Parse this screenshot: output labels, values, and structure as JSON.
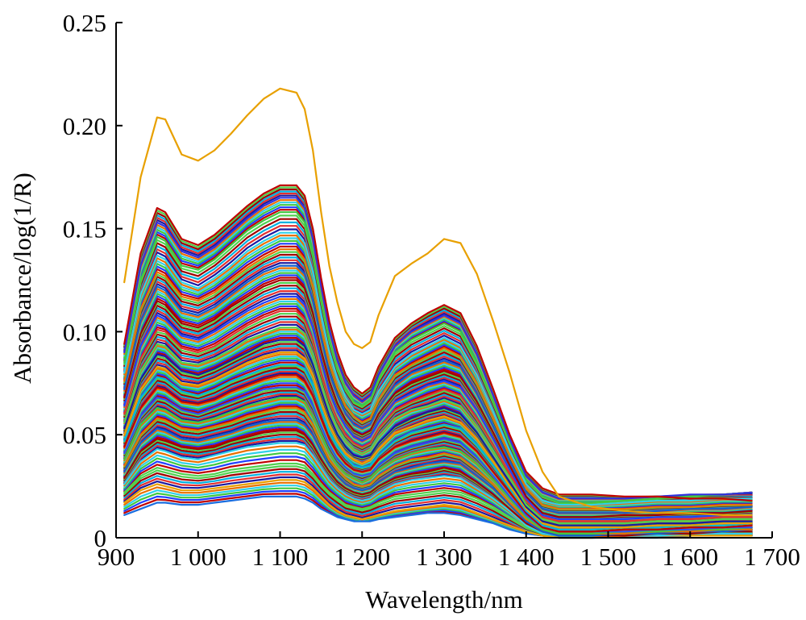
{
  "chart_data": {
    "type": "line",
    "title": "",
    "xlabel": "Wavelength/nm",
    "ylabel": "Absorbance/log(1/R)",
    "xlim": [
      900,
      1700
    ],
    "ylim": [
      0,
      0.25
    ],
    "x_ticks": [
      900,
      1000,
      1100,
      1200,
      1300,
      1400,
      1500,
      1600,
      1700
    ],
    "x_tick_labels": [
      "900",
      "1 000",
      "1 100",
      "1 200",
      "1 300",
      "1 400",
      "1 500",
      "1 600",
      "1 700"
    ],
    "y_ticks": [
      0,
      0.05,
      0.1,
      0.15,
      0.2,
      0.25
    ],
    "y_tick_labels": [
      "0",
      "0.05",
      "0.10",
      "0.15",
      "0.20",
      "0.25"
    ],
    "grid": false,
    "legend": "none",
    "x": [
      910,
      930,
      950,
      960,
      980,
      1000,
      1020,
      1040,
      1060,
      1080,
      1100,
      1120,
      1130,
      1140,
      1150,
      1160,
      1170,
      1180,
      1190,
      1200,
      1210,
      1220,
      1240,
      1260,
      1280,
      1300,
      1320,
      1340,
      1360,
      1380,
      1400,
      1420,
      1440,
      1480,
      1520,
      1560,
      1600,
      1640,
      1675
    ],
    "series": [
      {
        "color": "#e8a000",
        "values": [
          0.124,
          0.175,
          0.204,
          0.203,
          0.186,
          0.183,
          0.188,
          0.196,
          0.205,
          0.213,
          0.218,
          0.216,
          0.208,
          0.188,
          0.158,
          0.132,
          0.114,
          0.1,
          0.094,
          0.092,
          0.095,
          0.108,
          0.127,
          0.133,
          0.138,
          0.145,
          0.143,
          0.128,
          0.105,
          0.08,
          0.052,
          0.032,
          0.02,
          0.015,
          0.013,
          0.012,
          0.012,
          0.011,
          0.011
        ]
      },
      {
        "color": "#c00000",
        "values": [
          0.094,
          0.138,
          0.16,
          0.158,
          0.145,
          0.142,
          0.147,
          0.154,
          0.161,
          0.167,
          0.171,
          0.171,
          0.166,
          0.15,
          0.126,
          0.105,
          0.09,
          0.079,
          0.073,
          0.07,
          0.073,
          0.083,
          0.097,
          0.104,
          0.109,
          0.113,
          0.109,
          0.093,
          0.072,
          0.05,
          0.032,
          0.024,
          0.021,
          0.021,
          0.02,
          0.02,
          0.019,
          0.019,
          0.018
        ]
      },
      {
        "color": "#3030e0",
        "values": [
          0.09,
          0.132,
          0.153,
          0.151,
          0.139,
          0.136,
          0.141,
          0.148,
          0.155,
          0.161,
          0.165,
          0.165,
          0.16,
          0.145,
          0.122,
          0.101,
          0.086,
          0.075,
          0.069,
          0.066,
          0.069,
          0.079,
          0.093,
          0.1,
          0.104,
          0.108,
          0.104,
          0.089,
          0.069,
          0.048,
          0.03,
          0.022,
          0.019,
          0.019,
          0.019,
          0.02,
          0.021,
          0.021,
          0.022
        ]
      },
      {
        "color": "#40c840",
        "values": [
          0.085,
          0.125,
          0.146,
          0.144,
          0.132,
          0.13,
          0.135,
          0.142,
          0.149,
          0.154,
          0.158,
          0.158,
          0.153,
          0.138,
          0.116,
          0.096,
          0.082,
          0.072,
          0.066,
          0.064,
          0.067,
          0.077,
          0.09,
          0.096,
          0.1,
          0.104,
          0.1,
          0.085,
          0.066,
          0.046,
          0.028,
          0.02,
          0.017,
          0.017,
          0.018,
          0.019,
          0.02,
          0.021,
          0.022
        ]
      },
      {
        "color": "#30d0e8",
        "values": [
          0.08,
          0.118,
          0.137,
          0.135,
          0.124,
          0.121,
          0.126,
          0.132,
          0.139,
          0.144,
          0.148,
          0.148,
          0.143,
          0.129,
          0.108,
          0.09,
          0.077,
          0.068,
          0.062,
          0.06,
          0.062,
          0.071,
          0.083,
          0.089,
          0.093,
          0.097,
          0.093,
          0.079,
          0.061,
          0.042,
          0.026,
          0.018,
          0.016,
          0.016,
          0.017,
          0.018,
          0.018,
          0.019,
          0.019
        ]
      },
      {
        "color": "#e87000",
        "values": [
          0.076,
          0.111,
          0.129,
          0.127,
          0.117,
          0.115,
          0.119,
          0.125,
          0.131,
          0.136,
          0.14,
          0.14,
          0.135,
          0.122,
          0.102,
          0.085,
          0.073,
          0.064,
          0.059,
          0.056,
          0.058,
          0.067,
          0.079,
          0.084,
          0.088,
          0.092,
          0.088,
          0.075,
          0.058,
          0.04,
          0.024,
          0.016,
          0.014,
          0.014,
          0.014,
          0.015,
          0.015,
          0.016,
          0.016
        ]
      },
      {
        "color": "#1060d0",
        "values": [
          0.072,
          0.105,
          0.122,
          0.12,
          0.11,
          0.108,
          0.112,
          0.118,
          0.124,
          0.129,
          0.132,
          0.132,
          0.128,
          0.115,
          0.097,
          0.08,
          0.069,
          0.06,
          0.055,
          0.053,
          0.055,
          0.063,
          0.074,
          0.08,
          0.083,
          0.086,
          0.083,
          0.07,
          0.054,
          0.037,
          0.022,
          0.014,
          0.012,
          0.012,
          0.012,
          0.013,
          0.014,
          0.014,
          0.015
        ]
      },
      {
        "color": "#a00000",
        "values": [
          0.068,
          0.099,
          0.115,
          0.113,
          0.104,
          0.102,
          0.106,
          0.112,
          0.117,
          0.122,
          0.125,
          0.125,
          0.121,
          0.109,
          0.091,
          0.076,
          0.065,
          0.057,
          0.052,
          0.05,
          0.052,
          0.06,
          0.07,
          0.075,
          0.078,
          0.081,
          0.078,
          0.066,
          0.051,
          0.035,
          0.02,
          0.012,
          0.01,
          0.01,
          0.011,
          0.011,
          0.012,
          0.012,
          0.013
        ]
      },
      {
        "color": "#2040ff",
        "values": [
          0.064,
          0.093,
          0.108,
          0.106,
          0.098,
          0.096,
          0.1,
          0.105,
          0.11,
          0.114,
          0.117,
          0.117,
          0.113,
          0.102,
          0.086,
          0.071,
          0.061,
          0.054,
          0.049,
          0.047,
          0.049,
          0.056,
          0.066,
          0.07,
          0.074,
          0.076,
          0.073,
          0.062,
          0.048,
          0.033,
          0.019,
          0.011,
          0.009,
          0.009,
          0.009,
          0.01,
          0.01,
          0.011,
          0.011
        ]
      },
      {
        "color": "#e03030",
        "values": [
          0.06,
          0.087,
          0.101,
          0.1,
          0.092,
          0.09,
          0.093,
          0.098,
          0.103,
          0.107,
          0.11,
          0.11,
          0.106,
          0.096,
          0.08,
          0.067,
          0.057,
          0.05,
          0.046,
          0.044,
          0.046,
          0.053,
          0.062,
          0.066,
          0.069,
          0.072,
          0.069,
          0.058,
          0.045,
          0.031,
          0.018,
          0.01,
          0.008,
          0.008,
          0.008,
          0.009,
          0.009,
          0.01,
          0.01
        ]
      },
      {
        "color": "#50d050",
        "values": [
          0.056,
          0.081,
          0.094,
          0.093,
          0.085,
          0.084,
          0.087,
          0.091,
          0.096,
          0.099,
          0.102,
          0.102,
          0.099,
          0.089,
          0.075,
          0.062,
          0.053,
          0.047,
          0.043,
          0.041,
          0.043,
          0.049,
          0.058,
          0.062,
          0.064,
          0.067,
          0.064,
          0.054,
          0.042,
          0.029,
          0.016,
          0.009,
          0.007,
          0.007,
          0.007,
          0.008,
          0.008,
          0.009,
          0.009
        ]
      },
      {
        "color": "#1a1aa0",
        "values": [
          0.053,
          0.077,
          0.089,
          0.088,
          0.081,
          0.079,
          0.082,
          0.086,
          0.09,
          0.094,
          0.096,
          0.096,
          0.093,
          0.084,
          0.071,
          0.059,
          0.05,
          0.044,
          0.04,
          0.039,
          0.04,
          0.046,
          0.054,
          0.058,
          0.061,
          0.063,
          0.06,
          0.051,
          0.039,
          0.027,
          0.015,
          0.008,
          0.006,
          0.006,
          0.006,
          0.007,
          0.007,
          0.008,
          0.008
        ]
      },
      {
        "color": "#e8a000",
        "values": [
          0.05,
          0.072,
          0.083,
          0.082,
          0.075,
          0.074,
          0.077,
          0.081,
          0.085,
          0.088,
          0.09,
          0.09,
          0.087,
          0.079,
          0.066,
          0.055,
          0.047,
          0.041,
          0.038,
          0.036,
          0.038,
          0.043,
          0.051,
          0.054,
          0.057,
          0.059,
          0.056,
          0.048,
          0.037,
          0.025,
          0.014,
          0.007,
          0.005,
          0.005,
          0.005,
          0.006,
          0.006,
          0.007,
          0.007
        ]
      },
      {
        "color": "#00b0e0",
        "values": [
          0.047,
          0.068,
          0.078,
          0.077,
          0.071,
          0.069,
          0.072,
          0.076,
          0.079,
          0.082,
          0.084,
          0.084,
          0.082,
          0.074,
          0.062,
          0.051,
          0.044,
          0.039,
          0.035,
          0.034,
          0.035,
          0.04,
          0.047,
          0.051,
          0.053,
          0.055,
          0.053,
          0.045,
          0.035,
          0.024,
          0.013,
          0.006,
          0.004,
          0.004,
          0.005,
          0.005,
          0.006,
          0.006,
          0.007
        ]
      },
      {
        "color": "#c00000",
        "values": [
          0.044,
          0.063,
          0.073,
          0.072,
          0.066,
          0.065,
          0.067,
          0.071,
          0.074,
          0.077,
          0.079,
          0.079,
          0.076,
          0.069,
          0.058,
          0.048,
          0.041,
          0.036,
          0.033,
          0.032,
          0.033,
          0.038,
          0.044,
          0.047,
          0.049,
          0.051,
          0.049,
          0.042,
          0.032,
          0.022,
          0.012,
          0.005,
          0.003,
          0.003,
          0.004,
          0.004,
          0.005,
          0.005,
          0.006
        ]
      },
      {
        "color": "#3050f0",
        "values": [
          0.041,
          0.059,
          0.068,
          0.067,
          0.062,
          0.06,
          0.063,
          0.066,
          0.069,
          0.072,
          0.073,
          0.073,
          0.071,
          0.064,
          0.054,
          0.045,
          0.038,
          0.034,
          0.031,
          0.03,
          0.031,
          0.035,
          0.041,
          0.044,
          0.046,
          0.048,
          0.046,
          0.039,
          0.03,
          0.02,
          0.011,
          0.005,
          0.003,
          0.003,
          0.003,
          0.004,
          0.004,
          0.005,
          0.005
        ]
      },
      {
        "color": "#40c840",
        "values": [
          0.038,
          0.055,
          0.063,
          0.062,
          0.057,
          0.056,
          0.058,
          0.061,
          0.064,
          0.066,
          0.068,
          0.068,
          0.066,
          0.059,
          0.05,
          0.041,
          0.035,
          0.031,
          0.029,
          0.027,
          0.029,
          0.033,
          0.038,
          0.041,
          0.043,
          0.044,
          0.042,
          0.036,
          0.028,
          0.019,
          0.01,
          0.004,
          0.002,
          0.002,
          0.003,
          0.003,
          0.004,
          0.004,
          0.005
        ]
      },
      {
        "color": "#e87000",
        "values": [
          0.035,
          0.05,
          0.058,
          0.057,
          0.053,
          0.052,
          0.054,
          0.056,
          0.059,
          0.061,
          0.063,
          0.063,
          0.061,
          0.055,
          0.046,
          0.038,
          0.033,
          0.029,
          0.026,
          0.025,
          0.026,
          0.03,
          0.035,
          0.038,
          0.039,
          0.041,
          0.039,
          0.033,
          0.026,
          0.017,
          0.009,
          0.004,
          0.002,
          0.002,
          0.002,
          0.003,
          0.003,
          0.004,
          0.004
        ]
      },
      {
        "color": "#1060d0",
        "values": [
          0.032,
          0.046,
          0.053,
          0.052,
          0.048,
          0.047,
          0.049,
          0.051,
          0.054,
          0.056,
          0.057,
          0.057,
          0.055,
          0.05,
          0.042,
          0.035,
          0.03,
          0.026,
          0.024,
          0.023,
          0.024,
          0.027,
          0.032,
          0.034,
          0.036,
          0.037,
          0.036,
          0.03,
          0.024,
          0.016,
          0.008,
          0.003,
          0.001,
          0.001,
          0.002,
          0.002,
          0.003,
          0.003,
          0.004
        ]
      },
      {
        "color": "#a00000",
        "values": [
          0.029,
          0.042,
          0.048,
          0.047,
          0.044,
          0.043,
          0.044,
          0.047,
          0.049,
          0.051,
          0.052,
          0.052,
          0.05,
          0.045,
          0.038,
          0.032,
          0.027,
          0.024,
          0.022,
          0.021,
          0.022,
          0.025,
          0.029,
          0.031,
          0.032,
          0.034,
          0.032,
          0.027,
          0.021,
          0.014,
          0.007,
          0.003,
          0.001,
          0.001,
          0.001,
          0.002,
          0.002,
          0.003,
          0.003
        ]
      },
      {
        "color": "#30d0e8",
        "values": [
          0.026,
          0.037,
          0.043,
          0.042,
          0.039,
          0.038,
          0.04,
          0.042,
          0.044,
          0.045,
          0.046,
          0.046,
          0.045,
          0.04,
          0.034,
          0.028,
          0.024,
          0.021,
          0.019,
          0.018,
          0.019,
          0.022,
          0.026,
          0.028,
          0.029,
          0.03,
          0.029,
          0.024,
          0.019,
          0.013,
          0.006,
          0.002,
          0.001,
          0.001,
          0.001,
          0.001,
          0.002,
          0.002,
          0.002
        ]
      },
      {
        "color": "#50d050",
        "values": [
          0.022,
          0.03,
          0.034,
          0.033,
          0.031,
          0.03,
          0.031,
          0.033,
          0.034,
          0.035,
          0.036,
          0.036,
          0.035,
          0.031,
          0.026,
          0.022,
          0.019,
          0.016,
          0.015,
          0.014,
          0.015,
          0.017,
          0.02,
          0.021,
          0.022,
          0.023,
          0.022,
          0.019,
          0.015,
          0.01,
          0.005,
          0.002,
          0.001,
          0.001,
          0.001,
          0.001,
          0.002,
          0.002,
          0.002
        ]
      },
      {
        "color": "#e8a000",
        "values": [
          0.017,
          0.023,
          0.026,
          0.025,
          0.023,
          0.023,
          0.024,
          0.025,
          0.026,
          0.027,
          0.028,
          0.028,
          0.027,
          0.024,
          0.02,
          0.016,
          0.013,
          0.011,
          0.01,
          0.009,
          0.01,
          0.011,
          0.013,
          0.014,
          0.015,
          0.016,
          0.015,
          0.012,
          0.009,
          0.006,
          0.003,
          0.001,
          0.0,
          0.0,
          0.001,
          0.001,
          0.001,
          0.001,
          0.001
        ]
      },
      {
        "color": "#1a6ee0",
        "values": [
          0.011,
          0.014,
          0.017,
          0.017,
          0.016,
          0.016,
          0.017,
          0.018,
          0.019,
          0.02,
          0.02,
          0.02,
          0.019,
          0.017,
          0.014,
          0.012,
          0.01,
          0.009,
          0.008,
          0.008,
          0.008,
          0.009,
          0.01,
          0.011,
          0.012,
          0.012,
          0.011,
          0.009,
          0.007,
          0.004,
          0.002,
          0.001,
          0.0,
          0.0,
          0.0,
          0.0,
          0.001,
          0.001,
          0.001
        ]
      }
    ]
  }
}
